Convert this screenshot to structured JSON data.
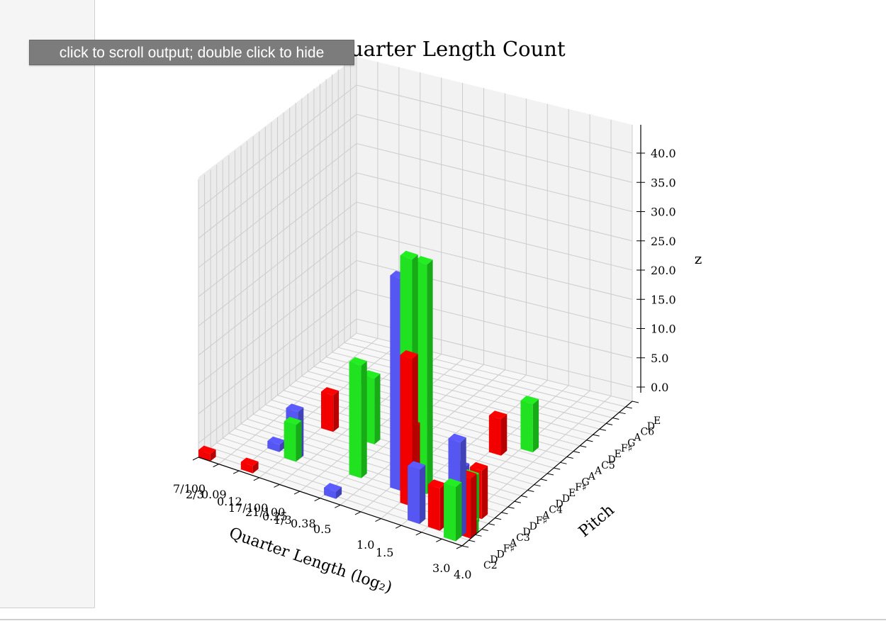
{
  "tooltip": {
    "text": "click to scroll output; double click to hide"
  },
  "colors": {
    "series_1": "#ff0000",
    "series_2": "#5b5bff",
    "series_3": "#22ee22",
    "pane_back": "#f2f2f2",
    "pane_side": "#ebebeb",
    "pane_floor": "#f7f7f7",
    "grid": "#cccccc",
    "gutter": "#f5f5f5"
  },
  "chart_data": {
    "type": "bar3d",
    "title": "uarter Length Count",
    "xlabel": "Quarter Length (log₂)",
    "ylabel": "Pitch",
    "zlabel": "z",
    "x_ticks": [
      "7/100",
      "2/3",
      "0.09",
      "0.12",
      "17/100",
      "21/100",
      "0.25",
      "1/3",
      "0.38",
      "0.5",
      "1.0",
      "1.5",
      "3.0",
      "4.0"
    ],
    "y_ticks": [
      "C2",
      "D",
      "D",
      "F♯",
      "A",
      "C3",
      "D",
      "D",
      "F♯",
      "A",
      "C4",
      "D",
      "D",
      "E",
      "F♯",
      "G",
      "A",
      "A",
      "C5",
      "D",
      "E",
      "F♯",
      "G",
      "A",
      "C6",
      "D",
      "E"
    ],
    "z_ticks": [
      "0.0",
      "5.0",
      "10.0",
      "15.0",
      "20.0",
      "25.0",
      "30.0",
      "35.0",
      "40.0"
    ],
    "z_range": [
      0,
      40
    ],
    "grid": true,
    "bars": [
      {
        "color": "#22ee22",
        "x": "0.5",
        "y": "F♯",
        "z": 42
      },
      {
        "color": "#22ee22",
        "x": "0.5",
        "y": "C3",
        "z": 39
      },
      {
        "color": "#5b5bff",
        "x": "0.38",
        "y": "A",
        "z": 36
      },
      {
        "color": "#ff0000",
        "x": "0.5",
        "y": "F♯",
        "z": 25
      },
      {
        "color": "#5b5bff",
        "x": "0.38",
        "y": "C3",
        "z": 21
      },
      {
        "color": "#22ee22",
        "x": "0.25",
        "y": "A",
        "z": 19
      },
      {
        "color": "#22ee22",
        "x": "21/100",
        "y": "C4",
        "z": 11
      },
      {
        "color": "#ff0000",
        "x": "0.5",
        "y": "F♯",
        "z": 13
      },
      {
        "color": "#ff0000",
        "x": "17/100",
        "y": "C5",
        "z": 2
      },
      {
        "color": "#22ee22",
        "x": "0.12",
        "y": "A",
        "z": 6
      },
      {
        "color": "#22ee22",
        "x": "0.09",
        "y": "C5",
        "z": 1
      },
      {
        "color": "#5b5bff",
        "x": "0.09",
        "y": "A",
        "z": 1
      },
      {
        "color": "#ff0000",
        "x": "0.12",
        "y": "C4",
        "z": 6
      },
      {
        "color": "#5b5bff",
        "x": "0.12",
        "y": "A",
        "z": 8
      },
      {
        "color": "#ff0000",
        "x": "1.0",
        "y": "E",
        "z": 6
      },
      {
        "color": "#5b5bff",
        "x": "1.0",
        "y": "D",
        "z": 9
      },
      {
        "color": "#22ee22",
        "x": "1.5",
        "y": "G",
        "z": 8
      },
      {
        "color": "#5b5bff",
        "x": "1.5",
        "y": "A",
        "z": 7
      },
      {
        "color": "#ff0000",
        "x": "1.5",
        "y": "D",
        "z": 7
      },
      {
        "color": "#ff0000",
        "x": "4.0",
        "y": "D",
        "z": 10
      },
      {
        "color": "#22ee22",
        "x": "4.0",
        "y": "D",
        "z": 2
      },
      {
        "color": "#ff0000",
        "x": "7/100",
        "y": "C2",
        "z": 1
      },
      {
        "color": "#ff0000",
        "x": "0.09",
        "y": "C2",
        "z": 1
      },
      {
        "color": "#5b5bff",
        "x": "0.25",
        "y": "C2",
        "z": 1
      },
      {
        "color": "#5b5bff",
        "x": "3.0",
        "y": "D",
        "z": 16
      },
      {
        "color": "#22ee22",
        "x": "3.0",
        "y": "C2",
        "z": 9
      },
      {
        "color": "#5b5bff",
        "x": "3.0",
        "y": "D",
        "z": 7
      },
      {
        "color": "#22ee22",
        "x": "3.0",
        "y": "F♯",
        "z": 8
      },
      {
        "color": "#ff0000",
        "x": "3.0",
        "y": "A",
        "z": 8
      }
    ]
  }
}
